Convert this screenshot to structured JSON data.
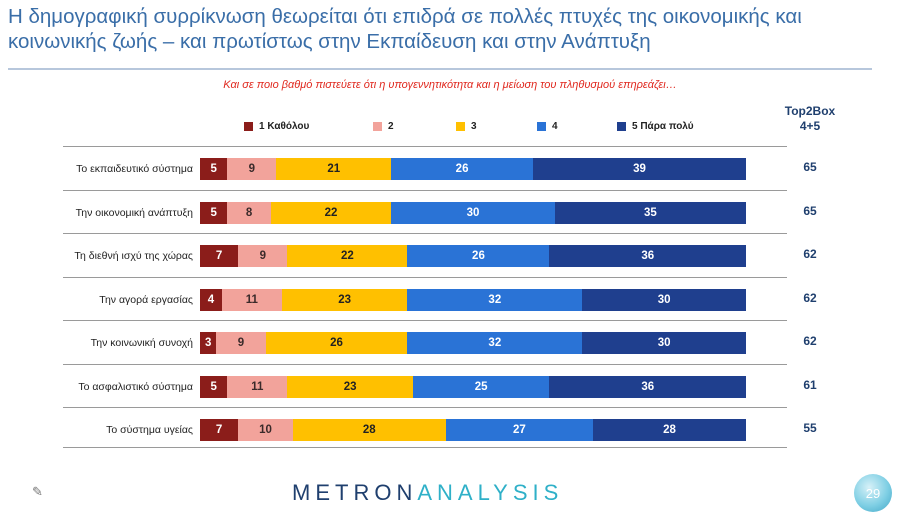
{
  "title": "Η δημογραφική συρρίκνωση θεωρείται ότι επιδρά σε πολλές πτυχές της οικονομικής και κοινωνικής ζωής – και πρωτίστως στην Εκπαίδευση και στην Ανάπτυξη",
  "top2box_header_line1": "Top2Box",
  "top2box_header_line2": "4+5",
  "footer": {
    "logo_part1": "METRON",
    "logo_part2": "ANALYSIS",
    "page_number": "29"
  },
  "colors": {
    "s1": "#8b1d1a",
    "s2": "#f2a39b",
    "s3": "#ffc000",
    "s4": "#2a73d6",
    "s5": "#1f3f8e",
    "title": "#3a6ea8",
    "subtitle": "#e0281e"
  },
  "chart_data": {
    "type": "bar",
    "orientation": "horizontal",
    "stacked": true,
    "title": "Και σε ποιο βαθμό πιστεύετε ότι η υπογεννητικότητα και η μείωση του πληθυσμού επηρεάζει…",
    "categories": [
      "Το εκπαιδευτικό σύστημα",
      "Την οικονομική ανάπτυξη",
      "Τη διεθνή ισχύ της χώρας",
      "Την αγορά εργασίας",
      "Την κοινωνική συνοχή",
      "Το ασφαλιστικό σύστημα",
      "Το σύστημα υγείας"
    ],
    "series": [
      {
        "name": "1 Καθόλου",
        "values": [
          5,
          5,
          7,
          4,
          3,
          5,
          7
        ]
      },
      {
        "name": "2",
        "values": [
          9,
          8,
          9,
          11,
          9,
          11,
          10
        ]
      },
      {
        "name": "3",
        "values": [
          21,
          22,
          22,
          23,
          26,
          23,
          28
        ]
      },
      {
        "name": "4",
        "values": [
          26,
          30,
          26,
          32,
          32,
          25,
          27
        ]
      },
      {
        "name": "5 Πάρα πολύ",
        "values": [
          39,
          35,
          36,
          30,
          30,
          36,
          28
        ]
      }
    ],
    "top2box": [
      65,
      65,
      62,
      62,
      62,
      61,
      55
    ],
    "legend_position": "top",
    "xlim": [
      0,
      100
    ]
  }
}
